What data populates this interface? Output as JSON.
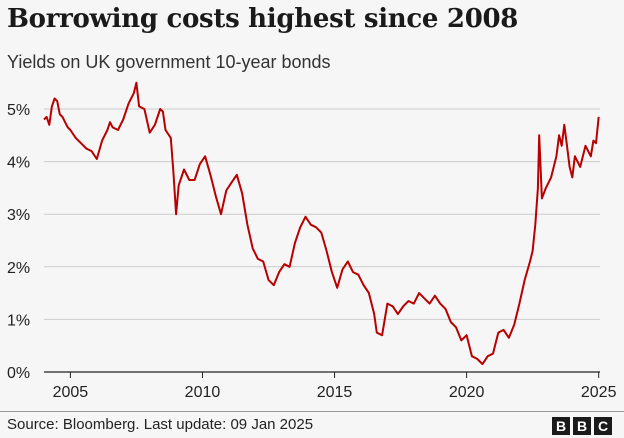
{
  "header": {
    "title": "Borrowing costs highest since 2008",
    "subtitle": "Yields on UK government 10-year bonds"
  },
  "footer": {
    "source": "Source: Bloomberg. Last update: 09 Jan 2025",
    "logo": [
      "B",
      "B",
      "C"
    ]
  },
  "colors": {
    "line": "#b80000",
    "grid": "#cccccc",
    "axis": "#222222",
    "background": "#f6f6f6"
  },
  "chart_data": {
    "type": "line",
    "title": "Borrowing costs highest since 2008",
    "subtitle": "Yields on UK government 10-year bonds",
    "xlabel": "",
    "ylabel": "",
    "xlim": [
      2004.0,
      2025.05
    ],
    "ylim": [
      0,
      5
    ],
    "x_ticks": [
      2005,
      2010,
      2015,
      2020,
      2025
    ],
    "x_tick_labels": [
      "2005",
      "2010",
      "2015",
      "2020",
      "2025"
    ],
    "y_ticks": [
      0,
      1,
      2,
      3,
      4,
      5
    ],
    "y_tick_labels": [
      "0%",
      "1%",
      "2%",
      "3%",
      "4%",
      "5%"
    ],
    "grid": "horizontal",
    "legend": "none",
    "series": [
      {
        "x": [
          2004.0,
          2004.1,
          2004.2,
          2004.3,
          2004.4,
          2004.5,
          2004.6,
          2004.7,
          2004.8,
          2004.9,
          2005.0,
          2005.2,
          2005.4,
          2005.6,
          2005.8,
          2006.0,
          2006.2,
          2006.4,
          2006.5,
          2006.6,
          2006.8,
          2007.0,
          2007.2,
          2007.4,
          2007.5,
          2007.6,
          2007.8,
          2008.0,
          2008.2,
          2008.4,
          2008.5,
          2008.6,
          2008.8,
          2008.9,
          2009.0,
          2009.1,
          2009.3,
          2009.5,
          2009.7,
          2009.9,
          2010.1,
          2010.3,
          2010.5,
          2010.7,
          2010.9,
          2011.1,
          2011.3,
          2011.5,
          2011.7,
          2011.9,
          2012.1,
          2012.3,
          2012.5,
          2012.7,
          2012.9,
          2013.1,
          2013.3,
          2013.5,
          2013.7,
          2013.9,
          2014.1,
          2014.3,
          2014.5,
          2014.7,
          2014.9,
          2015.1,
          2015.3,
          2015.5,
          2015.7,
          2015.9,
          2016.1,
          2016.3,
          2016.5,
          2016.6,
          2016.8,
          2017.0,
          2017.2,
          2017.4,
          2017.6,
          2017.8,
          2018.0,
          2018.2,
          2018.4,
          2018.6,
          2018.8,
          2019.0,
          2019.2,
          2019.4,
          2019.6,
          2019.8,
          2020.0,
          2020.1,
          2020.2,
          2020.4,
          2020.6,
          2020.8,
          2021.0,
          2021.2,
          2021.4,
          2021.6,
          2021.8,
          2022.0,
          2022.2,
          2022.4,
          2022.5,
          2022.6,
          2022.7,
          2022.75,
          2022.85,
          2023.0,
          2023.2,
          2023.4,
          2023.5,
          2023.6,
          2023.7,
          2023.8,
          2023.9,
          2024.0,
          2024.1,
          2024.3,
          2024.5,
          2024.7,
          2024.8,
          2024.9,
          2025.0
        ],
        "values": [
          4.8,
          4.85,
          4.7,
          5.05,
          5.2,
          5.15,
          4.9,
          4.85,
          4.75,
          4.65,
          4.6,
          4.45,
          4.35,
          4.25,
          4.2,
          4.05,
          4.4,
          4.6,
          4.75,
          4.65,
          4.6,
          4.8,
          5.1,
          5.3,
          5.5,
          5.05,
          5.0,
          4.55,
          4.7,
          5.0,
          4.95,
          4.6,
          4.45,
          3.8,
          3.0,
          3.55,
          3.85,
          3.65,
          3.65,
          3.95,
          4.1,
          3.75,
          3.35,
          3.0,
          3.45,
          3.6,
          3.75,
          3.4,
          2.8,
          2.35,
          2.15,
          2.1,
          1.75,
          1.65,
          1.9,
          2.05,
          2.0,
          2.45,
          2.75,
          2.95,
          2.8,
          2.75,
          2.65,
          2.3,
          1.9,
          1.6,
          1.95,
          2.1,
          1.9,
          1.85,
          1.65,
          1.5,
          1.1,
          0.75,
          0.7,
          1.3,
          1.25,
          1.1,
          1.25,
          1.35,
          1.3,
          1.5,
          1.4,
          1.3,
          1.45,
          1.3,
          1.2,
          0.95,
          0.85,
          0.6,
          0.7,
          0.5,
          0.3,
          0.25,
          0.15,
          0.3,
          0.35,
          0.75,
          0.8,
          0.65,
          0.9,
          1.3,
          1.75,
          2.1,
          2.3,
          2.8,
          3.5,
          4.5,
          3.3,
          3.5,
          3.7,
          4.1,
          4.5,
          4.3,
          4.7,
          4.3,
          3.9,
          3.7,
          4.1,
          3.9,
          4.3,
          4.1,
          4.4,
          4.35,
          4.85
        ]
      }
    ]
  }
}
